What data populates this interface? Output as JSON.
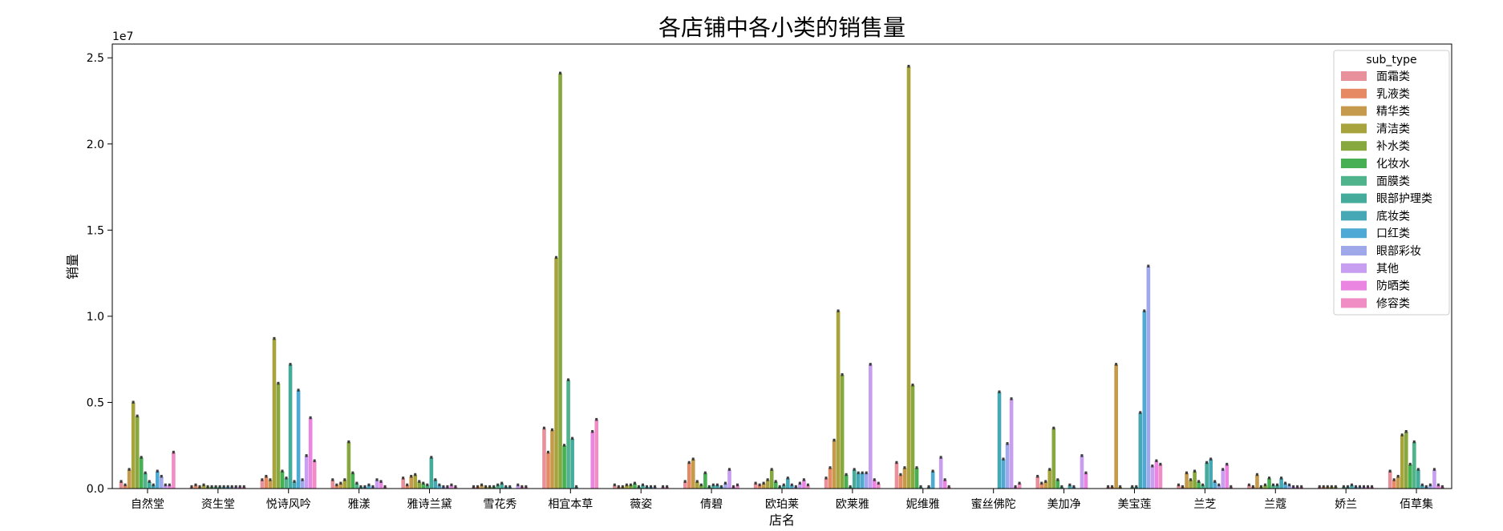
{
  "chart_data": {
    "type": "bar",
    "title": "各店铺中各小类的销售量",
    "xlabel": "店名",
    "ylabel": "销量",
    "offset_text": "1e7",
    "ylim": [
      0,
      2.58
    ],
    "yticks": [
      "0.0",
      "0.5",
      "1.0",
      "1.5",
      "2.0",
      "2.5"
    ],
    "ytick_values": [
      0,
      0.5,
      1.0,
      1.5,
      2.0,
      2.5
    ],
    "legend_title": "sub_type",
    "legend_position": "top-right",
    "categories": [
      "自然堂",
      "资生堂",
      "悦诗风吟",
      "雅漾",
      "雅诗兰黛",
      "雪花秀",
      "相宜本草",
      "薇姿",
      "倩碧",
      "欧珀莱",
      "欧莱雅",
      "妮维雅",
      "蜜丝佛陀",
      "美加净",
      "美宝莲",
      "兰芝",
      "兰蔻",
      "娇兰",
      "佰草集"
    ],
    "series": [
      {
        "name": "面霜类",
        "color": "#e8919d",
        "values": [
          0.04,
          0.01,
          0.05,
          0.05,
          0.06,
          0.01,
          0.35,
          0.02,
          0.04,
          0.03,
          0.06,
          0.15,
          0,
          0.07,
          0.01,
          0.02,
          0.02,
          0.01,
          0.1
        ]
      },
      {
        "name": "乳液类",
        "color": "#e68a64",
        "values": [
          0.02,
          0.02,
          0.07,
          0.02,
          0.02,
          0.01,
          0.21,
          0.01,
          0.15,
          0.02,
          0.12,
          0.08,
          0,
          0.03,
          0.01,
          0.01,
          0.01,
          0.01,
          0.05
        ]
      },
      {
        "name": "精华类",
        "color": "#c59a4d",
        "values": [
          0.11,
          0.01,
          0.05,
          0.03,
          0.07,
          0.02,
          0.34,
          0.01,
          0.17,
          0.03,
          0.28,
          0.12,
          0,
          0.04,
          0.72,
          0.09,
          0.08,
          0.01,
          0.07
        ]
      },
      {
        "name": "清洁类",
        "color": "#a8a43d",
        "values": [
          0.5,
          0.02,
          0.87,
          0.05,
          0.08,
          0.01,
          1.34,
          0.02,
          0.04,
          0.05,
          1.03,
          2.45,
          0,
          0.11,
          0.01,
          0.05,
          0.01,
          0.01,
          0.31
        ]
      },
      {
        "name": "补水类",
        "color": "#86a83f",
        "values": [
          0.42,
          0.01,
          0.61,
          0.27,
          0.04,
          0.01,
          2.41,
          0.02,
          0.02,
          0.11,
          0.66,
          0.6,
          0,
          0.35,
          0,
          0.1,
          0.02,
          0.01,
          0.33
        ]
      },
      {
        "name": "化妆水",
        "color": "#48b054",
        "values": [
          0.18,
          0.01,
          0.1,
          0.09,
          0.03,
          0.01,
          0.25,
          0.03,
          0.09,
          0.04,
          0.08,
          0.12,
          0,
          0.05,
          0,
          0.04,
          0.06,
          0,
          0.14
        ]
      },
      {
        "name": "面膜类",
        "color": "#4fb38c",
        "values": [
          0.09,
          0.01,
          0.06,
          0.03,
          0.02,
          0.02,
          0.63,
          0.01,
          0.01,
          0.01,
          0.01,
          0.01,
          0,
          0.01,
          0.01,
          0.02,
          0.02,
          0.01,
          0.27
        ]
      },
      {
        "name": "眼部护理类",
        "color": "#45ac9c",
        "values": [
          0.04,
          0.01,
          0.72,
          0.01,
          0.18,
          0.03,
          0.29,
          0.02,
          0.02,
          0.02,
          0.11,
          0,
          0,
          0,
          0.01,
          0.15,
          0.02,
          0.01,
          0.11
        ]
      },
      {
        "name": "底妆类",
        "color": "#46a8b5",
        "values": [
          0.02,
          0.01,
          0.04,
          0.01,
          0.05,
          0.01,
          0.01,
          0.01,
          0.02,
          0.06,
          0.09,
          0.01,
          0.56,
          0.02,
          0.44,
          0.17,
          0.06,
          0.02,
          0.02
        ]
      },
      {
        "name": "口红类",
        "color": "#4eaad4",
        "values": [
          0.1,
          0.01,
          0.57,
          0.02,
          0.02,
          0.01,
          0,
          0.01,
          0.01,
          0.02,
          0.09,
          0.1,
          0.17,
          0.01,
          1.03,
          0.04,
          0.03,
          0.01,
          0.01
        ]
      },
      {
        "name": "眼部彩妆",
        "color": "#9fa8e8",
        "values": [
          0.07,
          0.01,
          0.05,
          0.01,
          0.01,
          0,
          0,
          0.01,
          0.03,
          0.01,
          0.09,
          0,
          0.26,
          0,
          1.29,
          0.02,
          0.02,
          0.01,
          0.02
        ]
      },
      {
        "name": "其他",
        "color": "#c79ef0",
        "values": [
          0.02,
          0.01,
          0.19,
          0.05,
          0.01,
          0.02,
          0,
          0,
          0.11,
          0.03,
          0.72,
          0.18,
          0.52,
          0.19,
          0.13,
          0.11,
          0.01,
          0.01,
          0.11
        ]
      },
      {
        "name": "防晒类",
        "color": "#ea86e2",
        "values": [
          0.02,
          0.01,
          0.41,
          0.04,
          0.02,
          0.01,
          0.33,
          0.01,
          0.01,
          0.05,
          0.05,
          0.05,
          0.01,
          0.09,
          0.16,
          0.14,
          0.01,
          0.01,
          0.02
        ]
      },
      {
        "name": "修容类",
        "color": "#f08dc4",
        "values": [
          0.21,
          0.01,
          0.16,
          0.01,
          0.01,
          0.01,
          0.4,
          0.01,
          0.02,
          0.02,
          0.03,
          0.01,
          0.03,
          0,
          0.14,
          0.01,
          0.01,
          0.01,
          0.01
        ]
      }
    ]
  }
}
